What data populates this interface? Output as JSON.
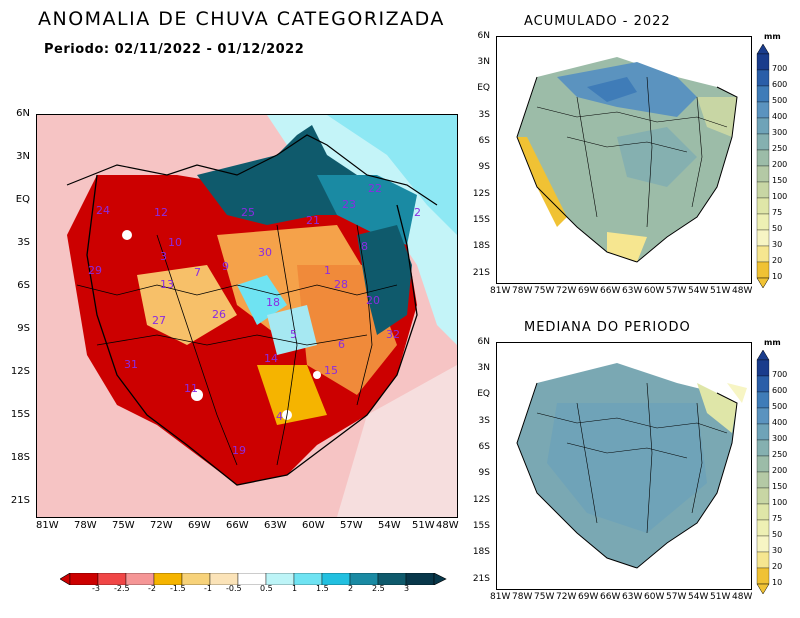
{
  "left_panel": {
    "title": "ANOMALIA DE CHUVA CATEGORIZADA",
    "period_label": "Periodo: 02/11/2022 - 01/12/2022",
    "lat_labels": [
      "6N",
      "3N",
      "EQ",
      "3S",
      "6S",
      "9S",
      "12S",
      "15S",
      "18S",
      "21S"
    ],
    "lon_labels": [
      "81W",
      "78W",
      "75W",
      "72W",
      "69W",
      "66W",
      "63W",
      "60W",
      "57W",
      "54W",
      "51W",
      "48W"
    ],
    "basin_labels": [
      "24",
      "12",
      "25",
      "23",
      "22",
      "2",
      "21",
      "29",
      "10",
      "3",
      "7",
      "30",
      "8",
      "13",
      "1",
      "9",
      "28",
      "18",
      "20",
      "26",
      "27",
      "31",
      "32",
      "14",
      "5",
      "6",
      "15",
      "4",
      "11",
      "19"
    ],
    "colorbar": {
      "labels": [
        "-3",
        "-2.5",
        "-2",
        "-1.5",
        "-1",
        "-0.5",
        "0.5",
        "1",
        "1.5",
        "2",
        "2.5",
        "3"
      ],
      "colors": [
        "#cc0000",
        "#f04646",
        "#f59696",
        "#f5b400",
        "#f7d27a",
        "#fbe3b8",
        "#ffffff",
        "#bdf4f7",
        "#6fe3f2",
        "#22c0e0",
        "#1a8aa3",
        "#0f5a6c",
        "#08374a"
      ]
    }
  },
  "right_top": {
    "title": "ACUMULADO - 2022",
    "unit": "mm",
    "lat_labels": [
      "6N",
      "3N",
      "EQ",
      "3S",
      "6S",
      "9S",
      "12S",
      "15S",
      "18S",
      "21S"
    ],
    "lon_labels": [
      "81W",
      "78W",
      "75W",
      "72W",
      "69W",
      "66W",
      "63W",
      "60W",
      "57W",
      "54W",
      "51W",
      "48W"
    ]
  },
  "right_bottom": {
    "title": "MEDIANA DO PERIODO",
    "unit": "mm",
    "lat_labels": [
      "6N",
      "3N",
      "EQ",
      "3S",
      "6S",
      "9S",
      "12S",
      "15S",
      "18S",
      "21S"
    ],
    "lon_labels": [
      "81W",
      "78W",
      "75W",
      "72W",
      "69W",
      "66W",
      "63W",
      "60W",
      "57W",
      "54W",
      "51W",
      "48W"
    ]
  },
  "mm_colorbar": {
    "labels": [
      "700",
      "600",
      "500",
      "400",
      "300",
      "250",
      "200",
      "150",
      "100",
      "75",
      "50",
      "30",
      "20",
      "10"
    ],
    "colors": [
      "#1a3c8c",
      "#2a5ea8",
      "#3f7cb8",
      "#5b93bf",
      "#6fa3b8",
      "#85b0b0",
      "#9cbca8",
      "#b4c9a5",
      "#c8d6a4",
      "#dfe6a8",
      "#eef0b4",
      "#f7f5c4",
      "#f6e690",
      "#f0c234"
    ]
  }
}
